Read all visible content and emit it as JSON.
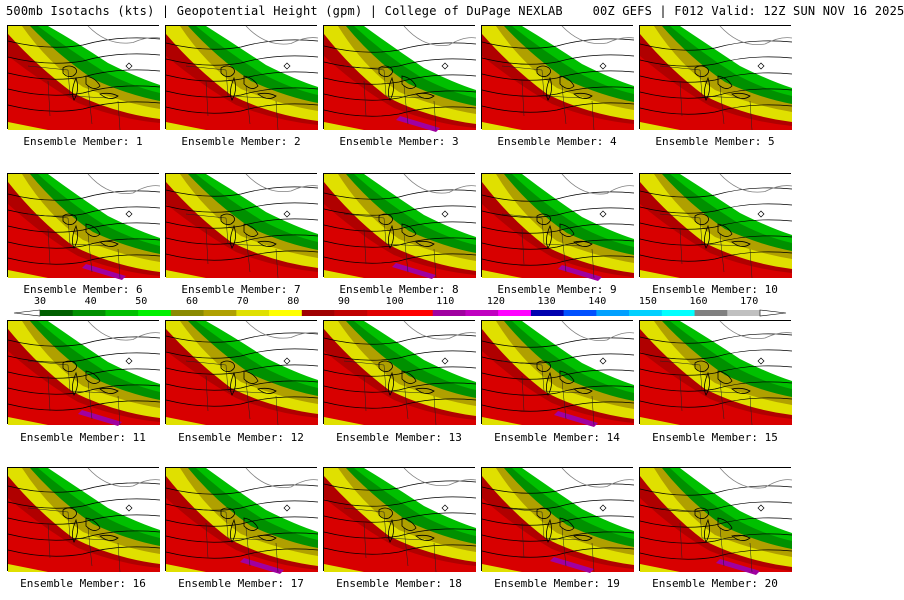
{
  "header": {
    "title": "500mb Isotachs (kts) | Geopotential Height (gpm) | College of DuPage NEXLAB",
    "run_info": "00Z GEFS | F012 Valid: 12Z SUN NOV 16 2025"
  },
  "colors": {
    "c30": "#006400",
    "c40": "#00a000",
    "c50": "#00e000",
    "c60": "#a08000",
    "c70": "#e0e000",
    "c80": "#ffff00",
    "c90": "#a00000",
    "c100": "#d00000",
    "c110": "#ff0000",
    "c120": "#a000a0",
    "c130": "#c000c0",
    "c140": "#ff00ff",
    "c150": "#0000c0",
    "c160": "#0040ff",
    "c170": "#00a0ff"
  },
  "colorbar": {
    "ticks": [
      "30",
      "40",
      "50",
      "60",
      "70",
      "80",
      "90",
      "100",
      "110",
      "120",
      "130",
      "140",
      "150",
      "160",
      "170"
    ],
    "bins": [
      "#006000",
      "#009000",
      "#00c000",
      "#00f000",
      "#8a8a00",
      "#b0a000",
      "#e0e000",
      "#ffff00",
      "#a00000",
      "#c00000",
      "#e00000",
      "#ff0000",
      "#a000a0",
      "#c000c0",
      "#ff00ff",
      "#0000b0",
      "#0050ff",
      "#00a0ff",
      "#00d0ff",
      "#00ffff",
      "#808080",
      "#c0c0c0"
    ]
  },
  "members": [
    {
      "label": "Ensemble Member: 1"
    },
    {
      "label": "Ensemble Member: 2"
    },
    {
      "label": "Ensemble Member: 3"
    },
    {
      "label": "Ensemble Member: 4"
    },
    {
      "label": "Ensemble Member: 5"
    },
    {
      "label": "Ensemble Member: 6"
    },
    {
      "label": "Ensemble Member: 7"
    },
    {
      "label": "Ensemble Member: 8"
    },
    {
      "label": "Ensemble Member: 9"
    },
    {
      "label": "Ensemble Member: 10"
    },
    {
      "label": "Ensemble Member: 11"
    },
    {
      "label": "Ensemble Member: 12"
    },
    {
      "label": "Ensemble Member: 13"
    },
    {
      "label": "Ensemble Member: 14"
    },
    {
      "label": "Ensemble Member: 15"
    },
    {
      "label": "Ensemble Member: 16"
    },
    {
      "label": "Ensemble Member: 17"
    },
    {
      "label": "Ensemble Member: 18"
    },
    {
      "label": "Ensemble Member: 19"
    },
    {
      "label": "Ensemble Member: 20"
    }
  ]
}
